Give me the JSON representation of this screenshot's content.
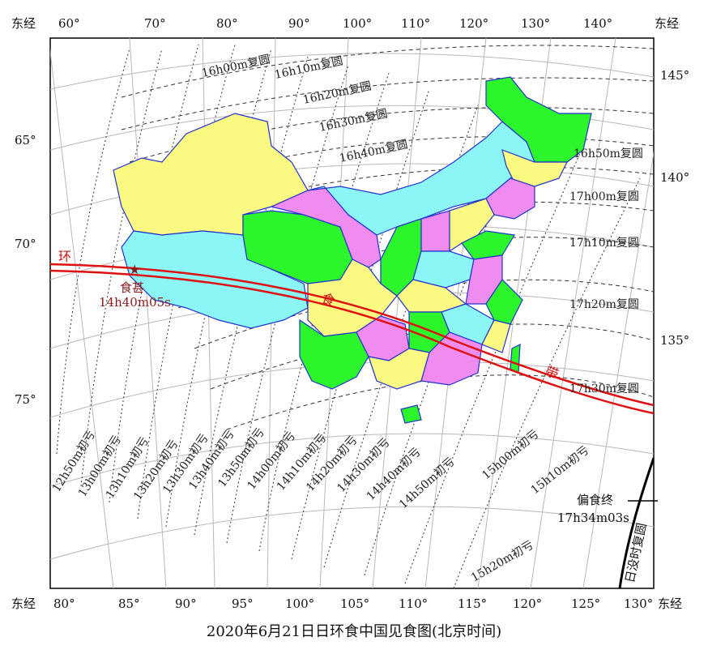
{
  "caption": "2020年6月21日日环食中国见食图(北京时间)",
  "edge_prefix": "东经",
  "top_longitudes": [
    "60°",
    "70°",
    "80°",
    "90°",
    "100°",
    "110°",
    "120°",
    "130°",
    "140°"
  ],
  "bottom_longitudes": [
    "80°",
    "85°",
    "90°",
    "95°",
    "100°",
    "105°",
    "110°",
    "115°",
    "120°",
    "125°",
    "130°"
  ],
  "left_latitudes": [
    "65°",
    "70°",
    "75°"
  ],
  "right_latitudes": [
    "145°",
    "140°",
    "135°"
  ],
  "end_contours": [
    "16h00m复圆",
    "16h10m复圆",
    "16h20m复圆",
    "16h30m复圆",
    "16h40m复圆",
    "16h50m复圆",
    "17h00m复圆",
    "17h10m复圆",
    "17h20m复圆",
    "17h30m复圆"
  ],
  "begin_contours": [
    "12h50m初亏",
    "13h00m初亏",
    "13h10m初亏",
    "13h20m初亏",
    "13h30m初亏",
    "13h40m初亏",
    "13h50m初亏",
    "14h00m初亏",
    "14h10m初亏",
    "14h20m初亏",
    "14h30m初亏",
    "14h40m初亏",
    "14h50m初亏",
    "15h00m初亏",
    "15h10m初亏",
    "15h20m初亏"
  ],
  "annular_band_chars": [
    "环",
    "食",
    "带"
  ],
  "greatest_eclipse": {
    "label": "食甚",
    "time": "14h40m05s"
  },
  "partial_end": {
    "label": "偏食终",
    "time": "17h34m03s"
  },
  "sunset_curve_label": "日没时复圆",
  "colors": {
    "yellow": "#fafa82",
    "cyan": "#8cf5f5",
    "green": "#2cf52c",
    "magenta": "#f08cf0",
    "border": "#2233cc",
    "path": "#dd1111"
  }
}
